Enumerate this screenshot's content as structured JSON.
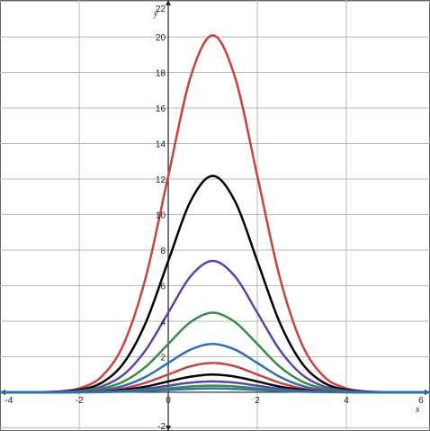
{
  "chart_data": {
    "type": "line",
    "x_label": "x",
    "y_label": "y",
    "x": [
      -4,
      -3.5,
      -3,
      -2.5,
      -2,
      -1.5,
      -1,
      -0.5,
      0,
      0.5,
      1,
      1.5,
      2,
      2.5,
      3,
      3.5,
      4,
      4.5,
      5,
      5.5,
      6
    ],
    "series": [
      {
        "color": "#c74440",
        "values": [
          0,
          0,
          0.01,
          0.04,
          0.22,
          0.88,
          2.72,
          6.52,
          12.18,
          17.73,
          20.09,
          17.73,
          12.18,
          6.52,
          2.72,
          0.88,
          0.22,
          0.04,
          0.01,
          0,
          0
        ]
      },
      {
        "color": "#000000",
        "values": [
          0,
          0,
          0,
          0.03,
          0.14,
          0.53,
          1.65,
          3.95,
          7.39,
          10.75,
          12.18,
          10.75,
          7.39,
          3.95,
          1.65,
          0.53,
          0.14,
          0.03,
          0,
          0,
          0
        ]
      },
      {
        "color": "#6042a6",
        "values": [
          0,
          0,
          0,
          0.02,
          0.08,
          0.32,
          1.0,
          2.4,
          4.48,
          6.52,
          7.39,
          6.52,
          4.48,
          2.4,
          1.0,
          0.32,
          0.08,
          0.02,
          0,
          0,
          0
        ]
      },
      {
        "color": "#388c46",
        "values": [
          0,
          0,
          0,
          0.01,
          0.05,
          0.2,
          0.61,
          1.45,
          2.72,
          3.95,
          4.48,
          3.95,
          2.72,
          1.45,
          0.61,
          0.2,
          0.05,
          0.01,
          0,
          0,
          0
        ]
      },
      {
        "color": "#2d70b3",
        "values": [
          0,
          0,
          0,
          0.01,
          0.03,
          0.12,
          0.37,
          0.88,
          1.65,
          2.4,
          2.72,
          2.4,
          1.65,
          0.88,
          0.37,
          0.12,
          0.03,
          0.01,
          0,
          0,
          0
        ]
      },
      {
        "color": "#c74440",
        "values": [
          0,
          0,
          0,
          0,
          0.02,
          0.07,
          0.22,
          0.54,
          1.0,
          1.46,
          1.65,
          1.46,
          1.0,
          0.54,
          0.22,
          0.07,
          0.02,
          0,
          0,
          0,
          0
        ]
      },
      {
        "color": "#000000",
        "values": [
          0,
          0,
          0,
          0,
          0.01,
          0.04,
          0.14,
          0.32,
          0.61,
          0.88,
          1,
          0.88,
          0.61,
          0.32,
          0.14,
          0.04,
          0.01,
          0,
          0,
          0,
          0
        ]
      },
      {
        "color": "#6042a6",
        "values": [
          0,
          0,
          0,
          0,
          0.01,
          0.03,
          0.08,
          0.2,
          0.37,
          0.54,
          0.61,
          0.54,
          0.37,
          0.2,
          0.08,
          0.03,
          0.01,
          0,
          0,
          0,
          0
        ]
      },
      {
        "color": "#388c46",
        "values": [
          0,
          0,
          0,
          0,
          0,
          0.02,
          0.05,
          0.12,
          0.22,
          0.33,
          0.37,
          0.33,
          0.22,
          0.12,
          0.05,
          0.02,
          0,
          0,
          0,
          0,
          0
        ]
      },
      {
        "color": "#2d70b3",
        "values": [
          0,
          0,
          0,
          0,
          0,
          0.01,
          0.03,
          0.07,
          0.13,
          0.19,
          0.22,
          0.19,
          0.13,
          0.07,
          0.03,
          0.01,
          0,
          0,
          0,
          0,
          0
        ]
      }
    ],
    "xlim": [
      -3.78,
      5.88
    ],
    "ylim": [
      -2.18,
      22.08
    ],
    "xticks": [
      -4,
      -2,
      0,
      2,
      4,
      6
    ],
    "yticks": [
      -2,
      2,
      4,
      6,
      8,
      10,
      12,
      14,
      16,
      18,
      20,
      22
    ],
    "grid": true
  }
}
